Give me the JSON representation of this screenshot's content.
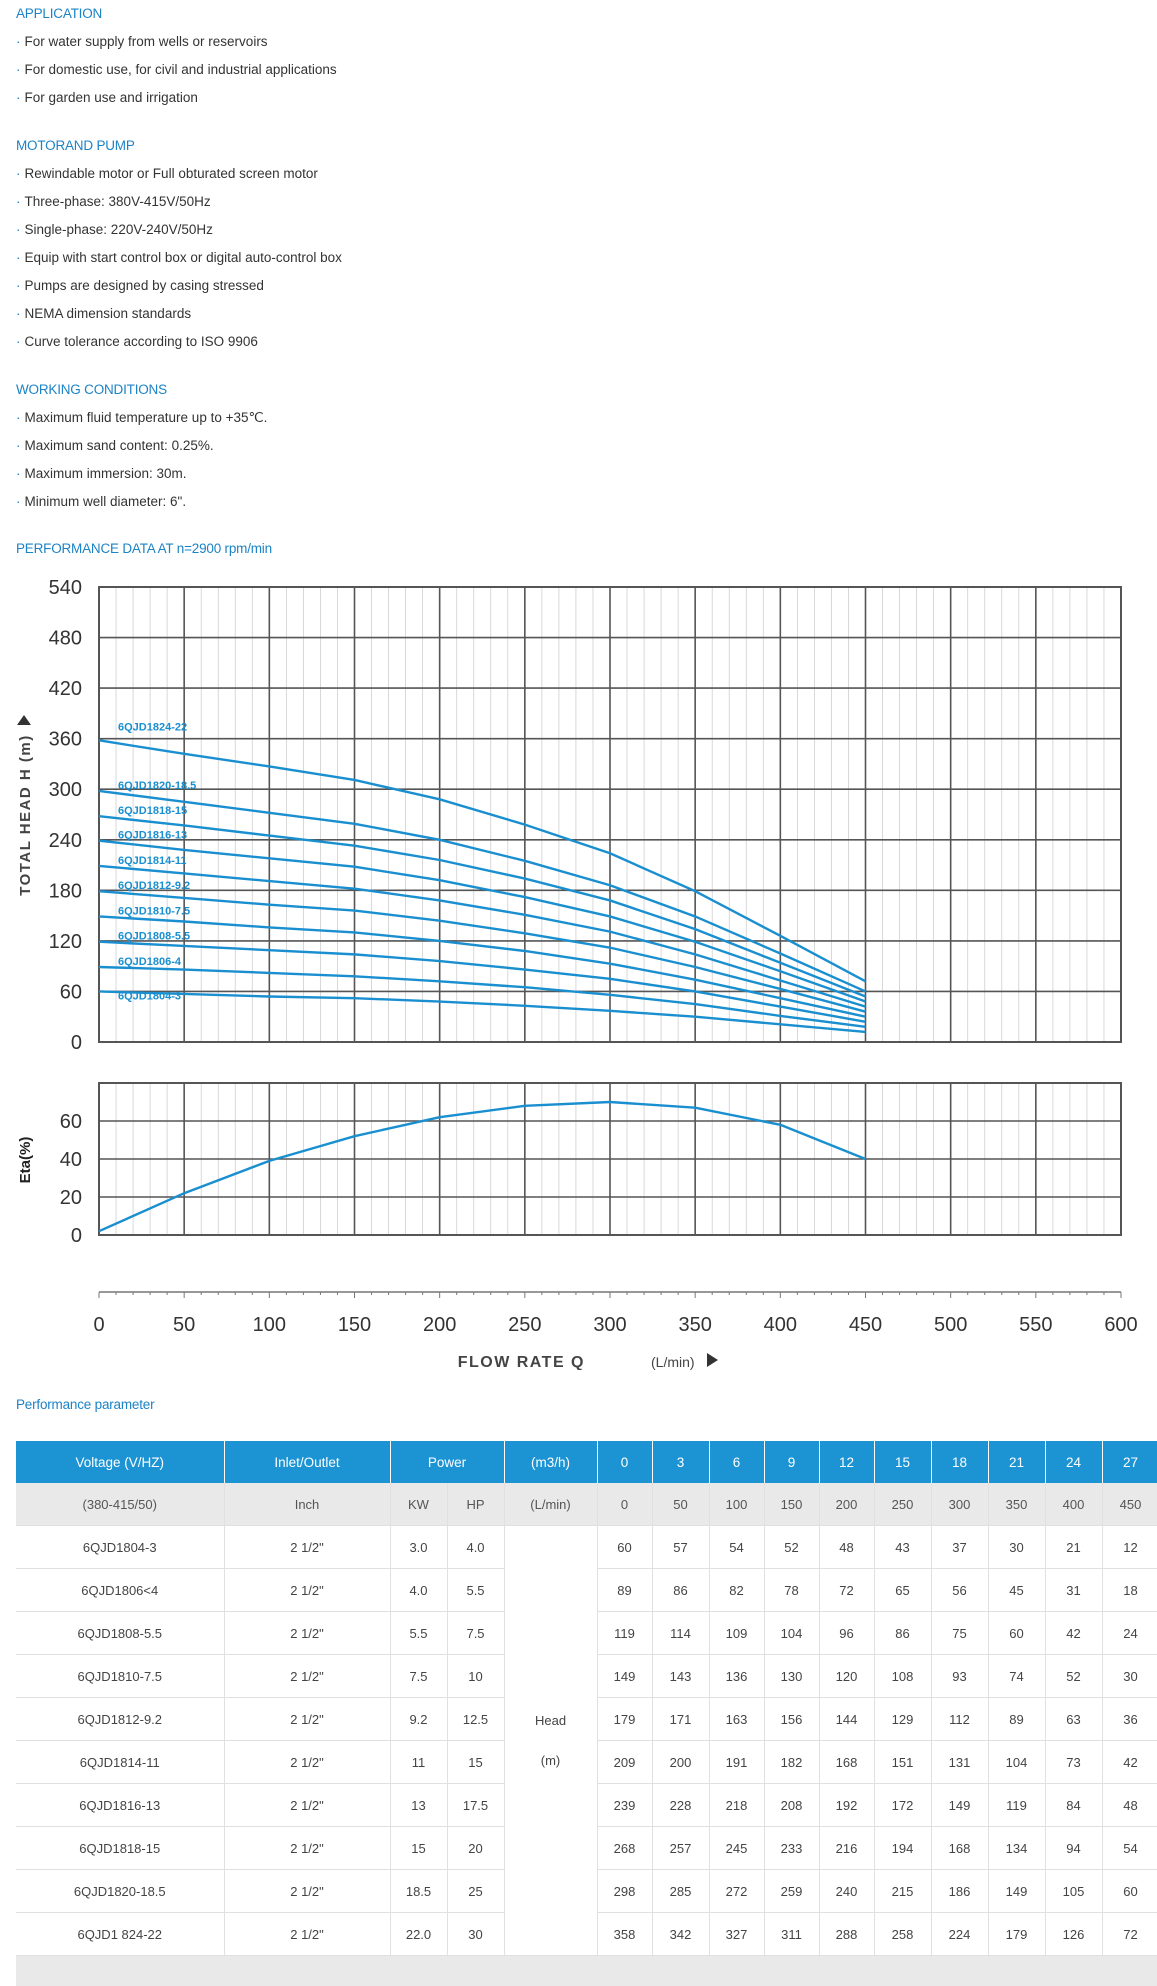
{
  "sections": {
    "application": {
      "title": "APPLICATION",
      "items": [
        "For water supply from wells or reservoirs",
        "For domestic use, for civil and industrial applications",
        "For garden use and irrigation"
      ]
    },
    "motor_pump": {
      "title": "MOTORAND PUMP",
      "items": [
        "Rewindable motor or Full obturated screen motor",
        "Three-phase: 380V-415V/50Hz",
        "Single-phase: 220V-240V/50Hz",
        "Equip with start control box or digital auto-control box",
        "Pumps are designed by casing stressed",
        "NEMA dimension standards",
        "Curve tolerance according to ISO 9906"
      ]
    },
    "working": {
      "title": "WORKING CONDITIONS",
      "items": [
        "Maximum fluid temperature up to +35℃.",
        "Maximum sand content: 0.25%.",
        "Maximum immersion: 30m.",
        "Minimum well diameter: 6\"."
      ]
    },
    "performance_title": "PERFORMANCE DATA AT n=2900 rpm/min",
    "parameter_title": "Performance parameter"
  },
  "bullet_char": "·",
  "colors": {
    "accent": "#1c83c6",
    "header_blue": "#1c93d3",
    "curve": "#1a8fd0",
    "grid": "#555555"
  },
  "chart_data": [
    {
      "type": "line",
      "title": "PERFORMANCE DATA AT n=2900 rpm/min",
      "ylabel": "TOTAL HEAD H (m)",
      "xlabel": "FLOW RATE Q",
      "xunit": "(L/min)",
      "xlim": [
        0,
        600
      ],
      "ylim": [
        0,
        540
      ],
      "yticks": [
        "540",
        "480",
        "420",
        "360",
        "300",
        "240",
        "180",
        "120",
        "60",
        "0"
      ],
      "x": [
        0,
        50,
        100,
        150,
        200,
        250,
        300,
        350,
        400,
        450
      ],
      "series": [
        {
          "name": "6QJD1824-22",
          "values": [
            358,
            342,
            327,
            311,
            288,
            258,
            224,
            179,
            126,
            72
          ]
        },
        {
          "name": "6QJD1820-18.5",
          "values": [
            298,
            285,
            272,
            259,
            240,
            215,
            186,
            149,
            105,
            60
          ]
        },
        {
          "name": "6QJD1818-15",
          "values": [
            268,
            257,
            245,
            233,
            216,
            194,
            168,
            134,
            94,
            54
          ]
        },
        {
          "name": "6QJD1816-13",
          "values": [
            239,
            228,
            218,
            208,
            192,
            172,
            149,
            119,
            84,
            48
          ]
        },
        {
          "name": "6QJD1814-11",
          "values": [
            209,
            200,
            191,
            182,
            168,
            151,
            131,
            104,
            73,
            42
          ]
        },
        {
          "name": "6QJD1812-9.2",
          "values": [
            179,
            171,
            163,
            156,
            144,
            129,
            112,
            89,
            63,
            36
          ]
        },
        {
          "name": "6QJD1810-7.5",
          "values": [
            149,
            143,
            136,
            130,
            120,
            108,
            93,
            74,
            52,
            30
          ]
        },
        {
          "name": "6QJD1808-5.5",
          "values": [
            119,
            114,
            109,
            104,
            96,
            86,
            75,
            60,
            42,
            24
          ]
        },
        {
          "name": "6QJD1806-4",
          "values": [
            89,
            86,
            82,
            78,
            72,
            65,
            56,
            45,
            31,
            18
          ]
        },
        {
          "name": "6QJD1804-3",
          "values": [
            60,
            57,
            54,
            52,
            48,
            43,
            37,
            30,
            21,
            12
          ]
        }
      ]
    },
    {
      "type": "line",
      "ylabel": "Eta(%)",
      "xlim": [
        0,
        600
      ],
      "ylim": [
        0,
        80
      ],
      "yticks": [
        "60",
        "40",
        "20",
        "0"
      ],
      "xticks": [
        "0",
        "50",
        "100",
        "150",
        "200",
        "250",
        "300",
        "350",
        "400",
        "450",
        "500",
        "550",
        "600"
      ],
      "x": [
        0,
        50,
        100,
        150,
        200,
        250,
        300,
        350,
        400,
        450
      ],
      "series": [
        {
          "name": "Eta",
          "values": [
            2,
            22,
            39,
            52,
            62,
            68,
            70,
            67,
            58,
            40
          ]
        }
      ]
    }
  ],
  "table": {
    "header": [
      "Voltage (V/HZ)",
      "Inlet/Outlet",
      "Power",
      "(m3/h)",
      "0",
      "3",
      "6",
      "9",
      "12",
      "15",
      "18",
      "21",
      "24",
      "27"
    ],
    "subheader": [
      "(380-415/50)",
      "Inch",
      "KW",
      "HP",
      "(L/min)",
      "0",
      "50",
      "100",
      "150",
      "200",
      "250",
      "300",
      "350",
      "400",
      "450"
    ],
    "head_label": "Head",
    "head_unit": "(m)",
    "rows": [
      {
        "model": "6QJD1804-3",
        "inlet": "2 1/2\"",
        "kw": "3.0",
        "hp": "4.0",
        "values": [
          "60",
          "57",
          "54",
          "52",
          "48",
          "43",
          "37",
          "30",
          "21",
          "12"
        ]
      },
      {
        "model": "6QJD1806<4",
        "inlet": "2 1/2\"",
        "kw": "4.0",
        "hp": "5.5",
        "values": [
          "89",
          "86",
          "82",
          "78",
          "72",
          "65",
          "56",
          "45",
          "31",
          "18"
        ]
      },
      {
        "model": "6QJD1808-5.5",
        "inlet": "2 1/2\"",
        "kw": "5.5",
        "hp": "7.5",
        "values": [
          "119",
          "114",
          "109",
          "104",
          "96",
          "86",
          "75",
          "60",
          "42",
          "24"
        ]
      },
      {
        "model": "6QJD1810-7.5",
        "inlet": "2 1/2\"",
        "kw": "7.5",
        "hp": "10",
        "values": [
          "149",
          "143",
          "136",
          "130",
          "120",
          "108",
          "93",
          "74",
          "52",
          "30"
        ]
      },
      {
        "model": "6QJD1812-9.2",
        "inlet": "2 1/2\"",
        "kw": "9.2",
        "hp": "12.5",
        "values": [
          "179",
          "171",
          "163",
          "156",
          "144",
          "129",
          "112",
          "89",
          "63",
          "36"
        ]
      },
      {
        "model": "6QJD1814-11",
        "inlet": "2 1/2\"",
        "kw": "11",
        "hp": "15",
        "values": [
          "209",
          "200",
          "191",
          "182",
          "168",
          "151",
          "131",
          "104",
          "73",
          "42"
        ]
      },
      {
        "model": "6QJD1816-13",
        "inlet": "2 1/2\"",
        "kw": "13",
        "hp": "17.5",
        "values": [
          "239",
          "228",
          "218",
          "208",
          "192",
          "172",
          "149",
          "119",
          "84",
          "48"
        ]
      },
      {
        "model": "6QJD1818-15",
        "inlet": "2 1/2\"",
        "kw": "15",
        "hp": "20",
        "values": [
          "268",
          "257",
          "245",
          "233",
          "216",
          "194",
          "168",
          "134",
          "94",
          "54"
        ]
      },
      {
        "model": "6QJD1820-18.5",
        "inlet": "2 1/2\"",
        "kw": "18.5",
        "hp": "25",
        "values": [
          "298",
          "285",
          "272",
          "259",
          "240",
          "215",
          "186",
          "149",
          "105",
          "60"
        ]
      },
      {
        "model": "6QJD1 824-22",
        "inlet": "2 1/2\"",
        "kw": "22.0",
        "hp": "30",
        "values": [
          "358",
          "342",
          "327",
          "311",
          "288",
          "258",
          "224",
          "179",
          "126",
          "72"
        ]
      }
    ]
  }
}
